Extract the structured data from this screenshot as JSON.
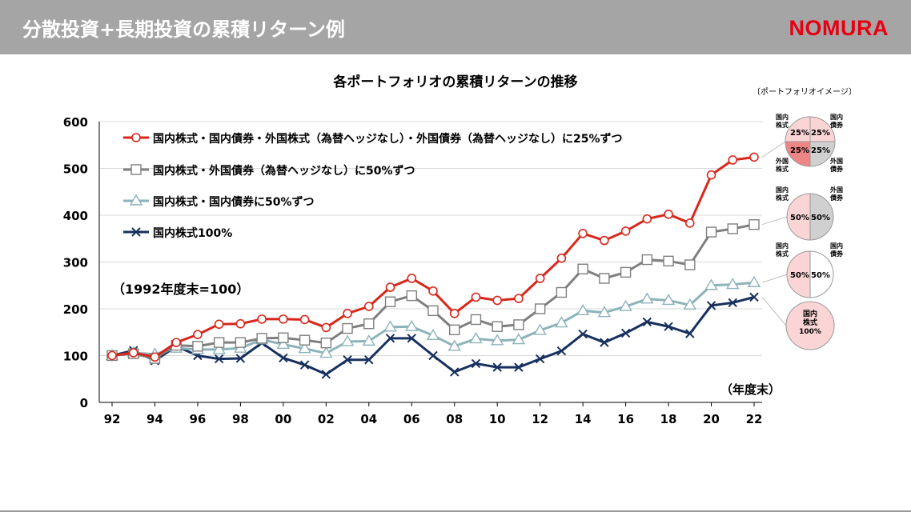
{
  "header": {
    "title": "分散投資+長期投資の累積リターン例",
    "logo": "NOMURA"
  },
  "chart_title": "各ポートフォリオの累積リターンの推移",
  "base_note": "（1992年度末=100）",
  "x_unit": "（年度末）",
  "portfolio_caption": "〔ポートフォリオイメージ〕",
  "pie_labels": {
    "domestic_stock": "国内\n株式",
    "domestic_bond": "国内\n債券",
    "foreign_stock": "外国\n株式",
    "foreign_bond": "外国\n債券",
    "domestic_stock_100": "国内\n株式\n100%"
  },
  "pies": [
    {
      "series": 0,
      "slices": [
        {
          "label": "25%",
          "color": "#fbd5d5"
        },
        {
          "label": "25%",
          "color": "#fbd5d5"
        },
        {
          "label": "25%",
          "color": "#ef8686"
        },
        {
          "label": "25%",
          "color": "#d0d0d0"
        }
      ]
    },
    {
      "series": 1,
      "slices": [
        {
          "label": "50%",
          "color": "#fbd5d5"
        },
        {
          "label": "50%",
          "color": "#d0d0d0"
        }
      ]
    },
    {
      "series": 2,
      "slices": [
        {
          "label": "50%",
          "color": "#fbd5d5"
        },
        {
          "label": "50%",
          "color": "#ffffff"
        }
      ]
    },
    {
      "series": 3,
      "slices": [
        {
          "label": "",
          "color": "#fbd5d5"
        }
      ]
    }
  ],
  "chart_data": {
    "type": "line",
    "title": "各ポートフォリオの累積リターンの推移",
    "x_ticks": [
      "92",
      "94",
      "96",
      "98",
      "00",
      "02",
      "04",
      "06",
      "08",
      "10",
      "12",
      "14",
      "16",
      "18",
      "20",
      "22"
    ],
    "y_ticks": [
      "0",
      "100",
      "200",
      "300",
      "400",
      "500",
      "600"
    ],
    "ylim": [
      0,
      600
    ],
    "x": [
      1992,
      1993,
      1994,
      1995,
      1996,
      1997,
      1998,
      1999,
      2000,
      2001,
      2002,
      2003,
      2004,
      2005,
      2006,
      2007,
      2008,
      2009,
      2010,
      2011,
      2012,
      2013,
      2014,
      2015,
      2016,
      2017,
      2018,
      2019,
      2020,
      2021,
      2022
    ],
    "grid": true,
    "legend_position": "top-left",
    "series": [
      {
        "name": "国内株式・国内債券・外国株式（為替ヘッジなし）・外国債券（為替ヘッジなし）に25%ずつ",
        "color": "#d9261c",
        "marker": "circle",
        "values": [
          100,
          106,
          97,
          128,
          145,
          167,
          168,
          178,
          178,
          177,
          160,
          190,
          205,
          246,
          265,
          238,
          190,
          225,
          218,
          222,
          265,
          308,
          361,
          346,
          366,
          392,
          402,
          383,
          486,
          518,
          524
        ]
      },
      {
        "name": "国内株式・外国債券（為替ヘッジなし）に50%ずつ",
        "color": "#7f7f7f",
        "marker": "square",
        "values": [
          100,
          104,
          94,
          122,
          120,
          128,
          128,
          137,
          138,
          133,
          127,
          158,
          168,
          215,
          228,
          196,
          155,
          177,
          162,
          166,
          200,
          235,
          285,
          265,
          278,
          305,
          302,
          294,
          364,
          371,
          380
        ]
      },
      {
        "name": "国内株式・国内債券に50%ずつ",
        "color": "#8cb3b8",
        "marker": "triangle",
        "values": [
          100,
          106,
          103,
          116,
          113,
          113,
          116,
          134,
          124,
          115,
          105,
          130,
          131,
          161,
          162,
          143,
          120,
          136,
          132,
          134,
          154,
          170,
          196,
          192,
          205,
          221,
          218,
          208,
          250,
          252,
          256
        ]
      },
      {
        "name": "国内株式100%",
        "color": "#17305e",
        "marker": "x",
        "values": [
          100,
          111,
          89,
          120,
          100,
          93,
          94,
          127,
          95,
          80,
          60,
          91,
          91,
          137,
          137,
          100,
          65,
          83,
          75,
          75,
          93,
          110,
          146,
          128,
          148,
          172,
          162,
          147,
          207,
          213,
          225
        ]
      }
    ]
  }
}
